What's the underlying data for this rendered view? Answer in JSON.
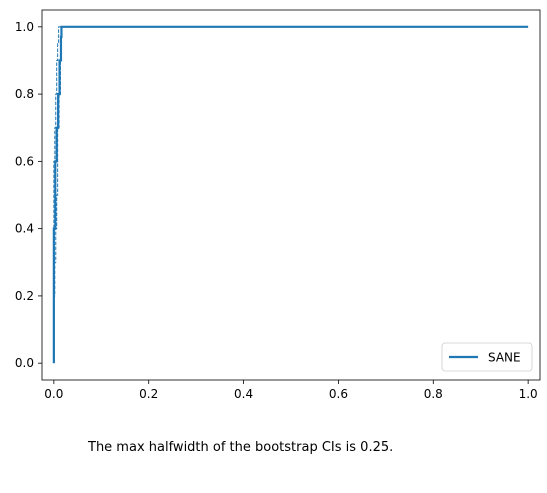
{
  "chart_data": {
    "type": "line",
    "xlim": [
      -0.025,
      1.025
    ],
    "ylim": [
      -0.05,
      1.05
    ],
    "x_ticks": [
      0.0,
      0.2,
      0.4,
      0.6,
      0.8,
      1.0
    ],
    "x_tick_labels": [
      "0.0",
      "0.2",
      "0.4",
      "0.6",
      "0.8",
      "1.0"
    ],
    "y_ticks": [
      0.0,
      0.2,
      0.4,
      0.6,
      0.8,
      1.0
    ],
    "y_tick_labels": [
      "0.0",
      "0.2",
      "0.4",
      "0.6",
      "0.8",
      "1.0"
    ],
    "grid": false,
    "legend_position": "lower right",
    "series": [
      {
        "name": "SANE",
        "style": "solid",
        "color": "#1f77b4",
        "x": [
          0.0,
          0.0,
          0.003,
          0.003,
          0.006,
          0.006,
          0.009,
          0.009,
          0.012,
          0.012,
          0.015,
          0.015,
          0.016,
          0.016,
          1.0
        ],
        "y": [
          0.0,
          0.4,
          0.4,
          0.6,
          0.6,
          0.7,
          0.7,
          0.8,
          0.8,
          0.9,
          0.9,
          0.97,
          0.97,
          1.0,
          1.0
        ]
      },
      {
        "style": "dashed",
        "color": "#1f77b4",
        "x": [
          0.0,
          0.0,
          0.002,
          0.002,
          0.004,
          0.004,
          0.006,
          0.006,
          0.008,
          0.008,
          0.011,
          0.011,
          0.014,
          0.014,
          0.016,
          0.016
        ],
        "y": [
          0.0,
          0.2,
          0.2,
          0.3,
          0.3,
          0.4,
          0.4,
          0.5,
          0.5,
          0.7,
          0.7,
          0.8,
          0.8,
          0.9,
          0.9,
          1.0
        ]
      },
      {
        "style": "dashed",
        "color": "#1f77b4",
        "x": [
          0.0,
          0.0,
          0.002,
          0.002,
          0.004,
          0.004,
          0.006,
          0.006,
          0.008,
          0.008,
          0.01,
          0.01,
          0.016
        ],
        "y": [
          0.0,
          0.6,
          0.6,
          0.7,
          0.7,
          0.8,
          0.8,
          0.9,
          0.9,
          0.95,
          0.95,
          1.0,
          1.0
        ]
      }
    ]
  },
  "caption": "The max halfwidth of the bootstrap CIs is 0.25."
}
